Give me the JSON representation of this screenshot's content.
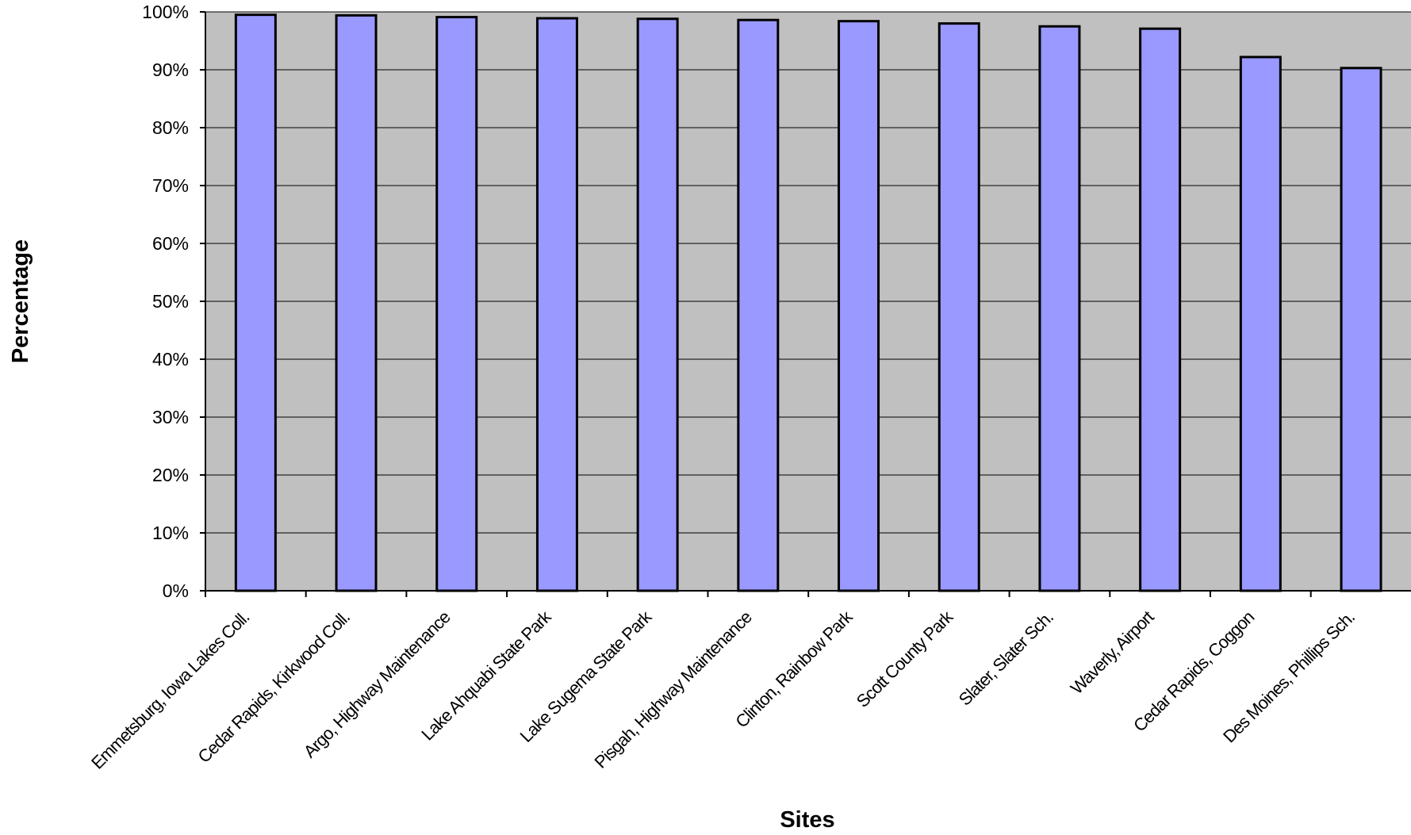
{
  "chart_data": {
    "type": "bar",
    "title": "",
    "xlabel": "Sites",
    "ylabel": "Percentage",
    "ylim": [
      0,
      100
    ],
    "yticks": [
      0,
      10,
      20,
      30,
      40,
      50,
      60,
      70,
      80,
      90,
      100
    ],
    "ytick_format": "{v}%",
    "grid": true,
    "legend": "none",
    "colors": {
      "bar_fill": "#9999ff",
      "bar_stroke": "#000000",
      "plot_background": "#c0c0c0",
      "gridline": "#000000"
    },
    "categories": [
      "Emmetsburg, Iowa Lakes Coll.",
      "Cedar Rapids, Kirkwood Coll.",
      "Argo, Highway Maintenance",
      "Lake Ahquabi State Park",
      "Lake Sugema State Park",
      "Pisgah, Highway Maintenance",
      "Clinton, Rainbow Park",
      "Scott County Park",
      "Slater, Slater Sch.",
      "Waverly, Airport",
      "Cedar Rapids, Coggon",
      "Des Moines, Phillips Sch."
    ],
    "values": [
      99.5,
      99.4,
      99.1,
      98.9,
      98.8,
      98.6,
      98.4,
      98.0,
      97.5,
      97.1,
      92.2,
      90.3
    ]
  }
}
